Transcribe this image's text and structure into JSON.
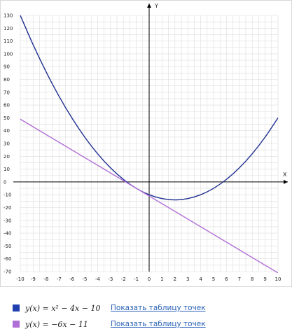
{
  "chart_data": {
    "type": "line",
    "xlabel": "X",
    "ylabel": "Y",
    "xlim": [
      -10,
      10
    ],
    "ylim": [
      -70,
      130
    ],
    "x_ticks": [
      -10,
      -9,
      -8,
      -7,
      -6,
      -5,
      -4,
      -3,
      -2,
      -1,
      0,
      1,
      2,
      3,
      4,
      5,
      6,
      7,
      8,
      9,
      10
    ],
    "y_ticks": [
      130,
      120,
      110,
      100,
      90,
      80,
      70,
      60,
      50,
      40,
      30,
      20,
      10,
      0,
      -10,
      -20,
      -30,
      -40,
      -50,
      -60,
      -70
    ],
    "grid": true,
    "series": [
      {
        "formula": "y(x) = x² − 4x − 10",
        "color": "#1f2f8f",
        "x": [
          -10,
          -9,
          -8,
          -7,
          -6,
          -5,
          -4,
          -3,
          -2,
          -1,
          0,
          1,
          2,
          3,
          4,
          5,
          6,
          7,
          8,
          9,
          10
        ],
        "values": [
          130,
          107,
          86,
          67,
          50,
          35,
          22,
          11,
          2,
          -5,
          -10,
          -13,
          -14,
          -13,
          -10,
          -5,
          2,
          11,
          22,
          35,
          50
        ]
      },
      {
        "formula": "y(x) = −6x − 11",
        "color": "#b06fd6",
        "x": [
          -10,
          10
        ],
        "values": [
          49,
          -71
        ]
      }
    ]
  },
  "legend": {
    "items": [
      {
        "formula": "y(x) = x² − 4x − 10",
        "link": "Показать таблицу точек",
        "color": "#2040b0"
      },
      {
        "formula": "y(x) = −6x − 11",
        "link": "Показать таблицу точек",
        "color": "#b06fd6"
      }
    ]
  }
}
